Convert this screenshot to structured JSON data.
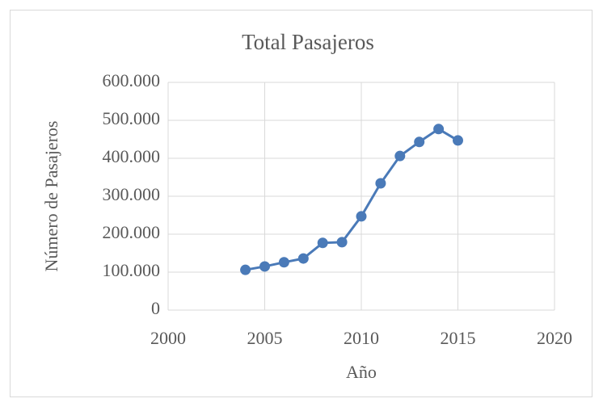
{
  "chart_data": {
    "type": "line",
    "title": "Total Pasajeros",
    "x_label": "Año",
    "y_label": "Número de Pasajeros",
    "x": [
      2004,
      2005,
      2006,
      2007,
      2008,
      2009,
      2010,
      2011,
      2012,
      2013,
      2014,
      2015
    ],
    "series": [
      {
        "color": "#4a7ab8",
        "values": [
          106000,
          115000,
          126000,
          136000,
          177000,
          179000,
          247000,
          334000,
          406000,
          443000,
          477000,
          447000
        ]
      }
    ],
    "xlim": [
      2000,
      2020
    ],
    "xticks": [
      2000,
      2005,
      2010,
      2015,
      2020
    ],
    "ylim": [
      0,
      600000
    ],
    "yticks": [
      0,
      {
        "value": 100000,
        "label": "100.000"
      },
      {
        "value": 200000,
        "label": "200.000"
      },
      {
        "value": 300000,
        "label": "300.000"
      },
      {
        "value": 400000,
        "label": "400.000"
      },
      {
        "value": 500000,
        "label": "500.000"
      },
      {
        "value": 600000,
        "label": "600.000"
      }
    ],
    "grid": true
  }
}
